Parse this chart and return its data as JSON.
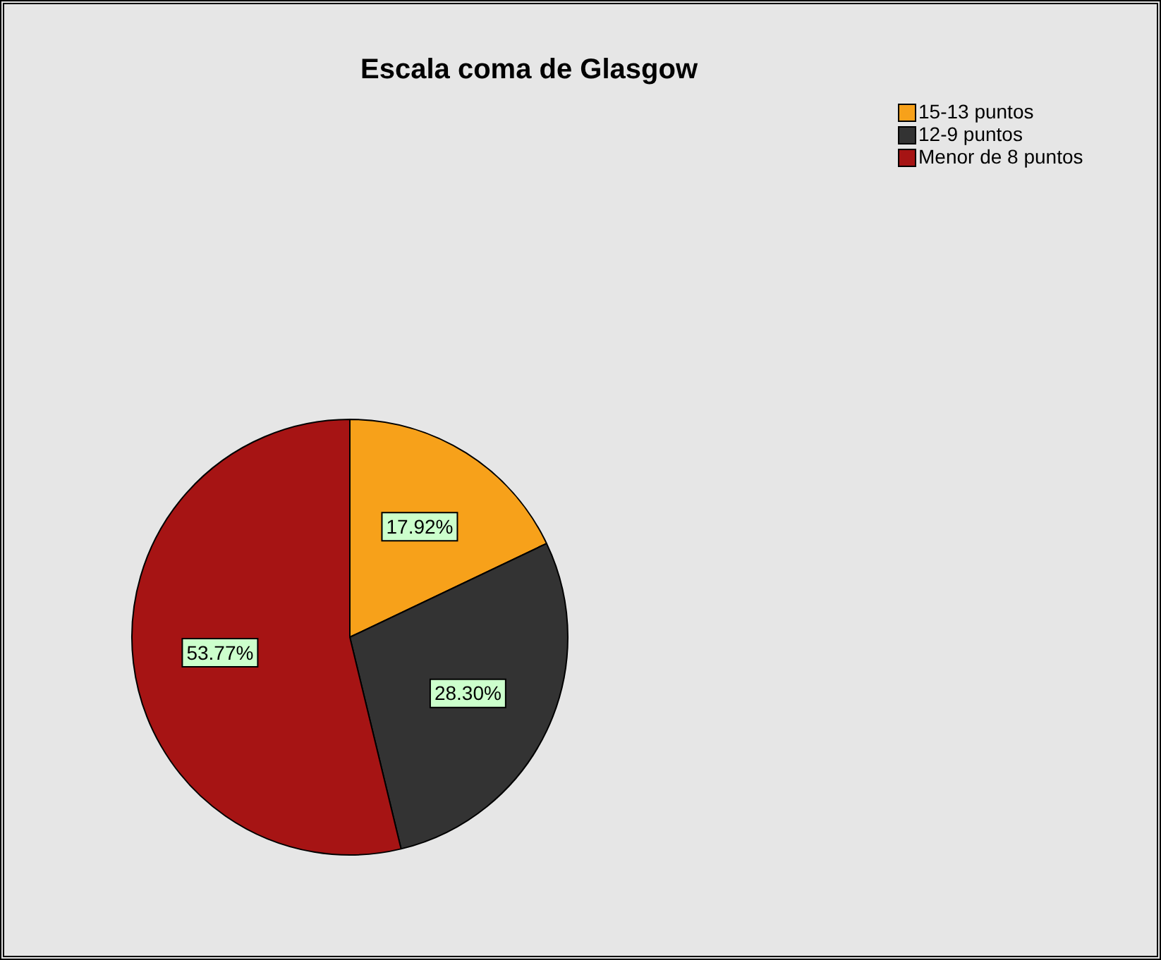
{
  "chart_data": {
    "type": "pie",
    "title": "Escala coma de Glasgow",
    "categories": [
      "15-13 puntos",
      "12-9 puntos",
      "Menor de 8 puntos"
    ],
    "values": [
      17.92,
      28.3,
      53.77
    ],
    "colors": [
      "#f7a11a",
      "#333333",
      "#a61414"
    ],
    "value_labels": [
      "17.92%",
      "28.30%",
      "53.77%"
    ],
    "legend": "top right"
  }
}
